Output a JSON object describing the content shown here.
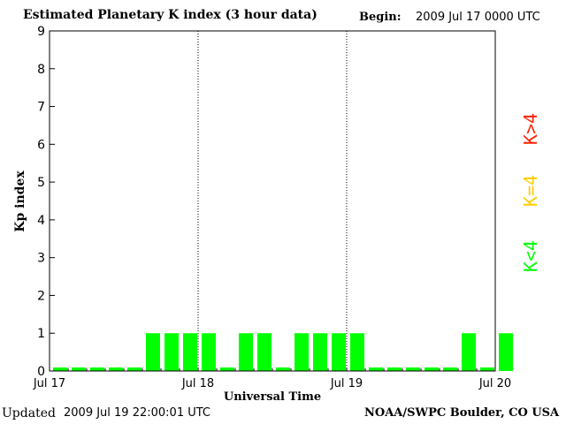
{
  "header": {
    "title": "Estimated Planetary K index (3 hour data)",
    "begin_label": "Begin:",
    "begin_value": "2009 Jul 17 0000 UTC"
  },
  "footer": {
    "updated_label": "Updated",
    "updated_value": "2009 Jul 19 22:00:01 UTC",
    "credit": "NOAA/SWPC Boulder, CO USA"
  },
  "legend": {
    "entries": [
      {
        "label": "K<4",
        "color": "#00ff00"
      },
      {
        "label": "K=4",
        "color": "#ffcc00"
      },
      {
        "label": "K>4",
        "color": "#ff2200"
      }
    ]
  },
  "chart_data": {
    "type": "bar",
    "ylabel": "Kp index",
    "xlabel": "Universal Time",
    "ylim": [
      0,
      9
    ],
    "yticks": [
      "0",
      "1",
      "2",
      "3",
      "4",
      "5",
      "6",
      "7",
      "8",
      "9"
    ],
    "xticks": [
      "Jul 17",
      "Jul 18",
      "Jul 19",
      "Jul 20"
    ],
    "interval_hours": 3,
    "values": [
      0,
      0,
      0,
      0,
      0,
      1,
      1,
      1,
      1,
      0,
      1,
      1,
      0,
      1,
      1,
      1,
      1,
      0,
      0,
      0,
      0,
      0,
      1,
      0,
      1
    ],
    "bar_color": "#00ff00"
  }
}
